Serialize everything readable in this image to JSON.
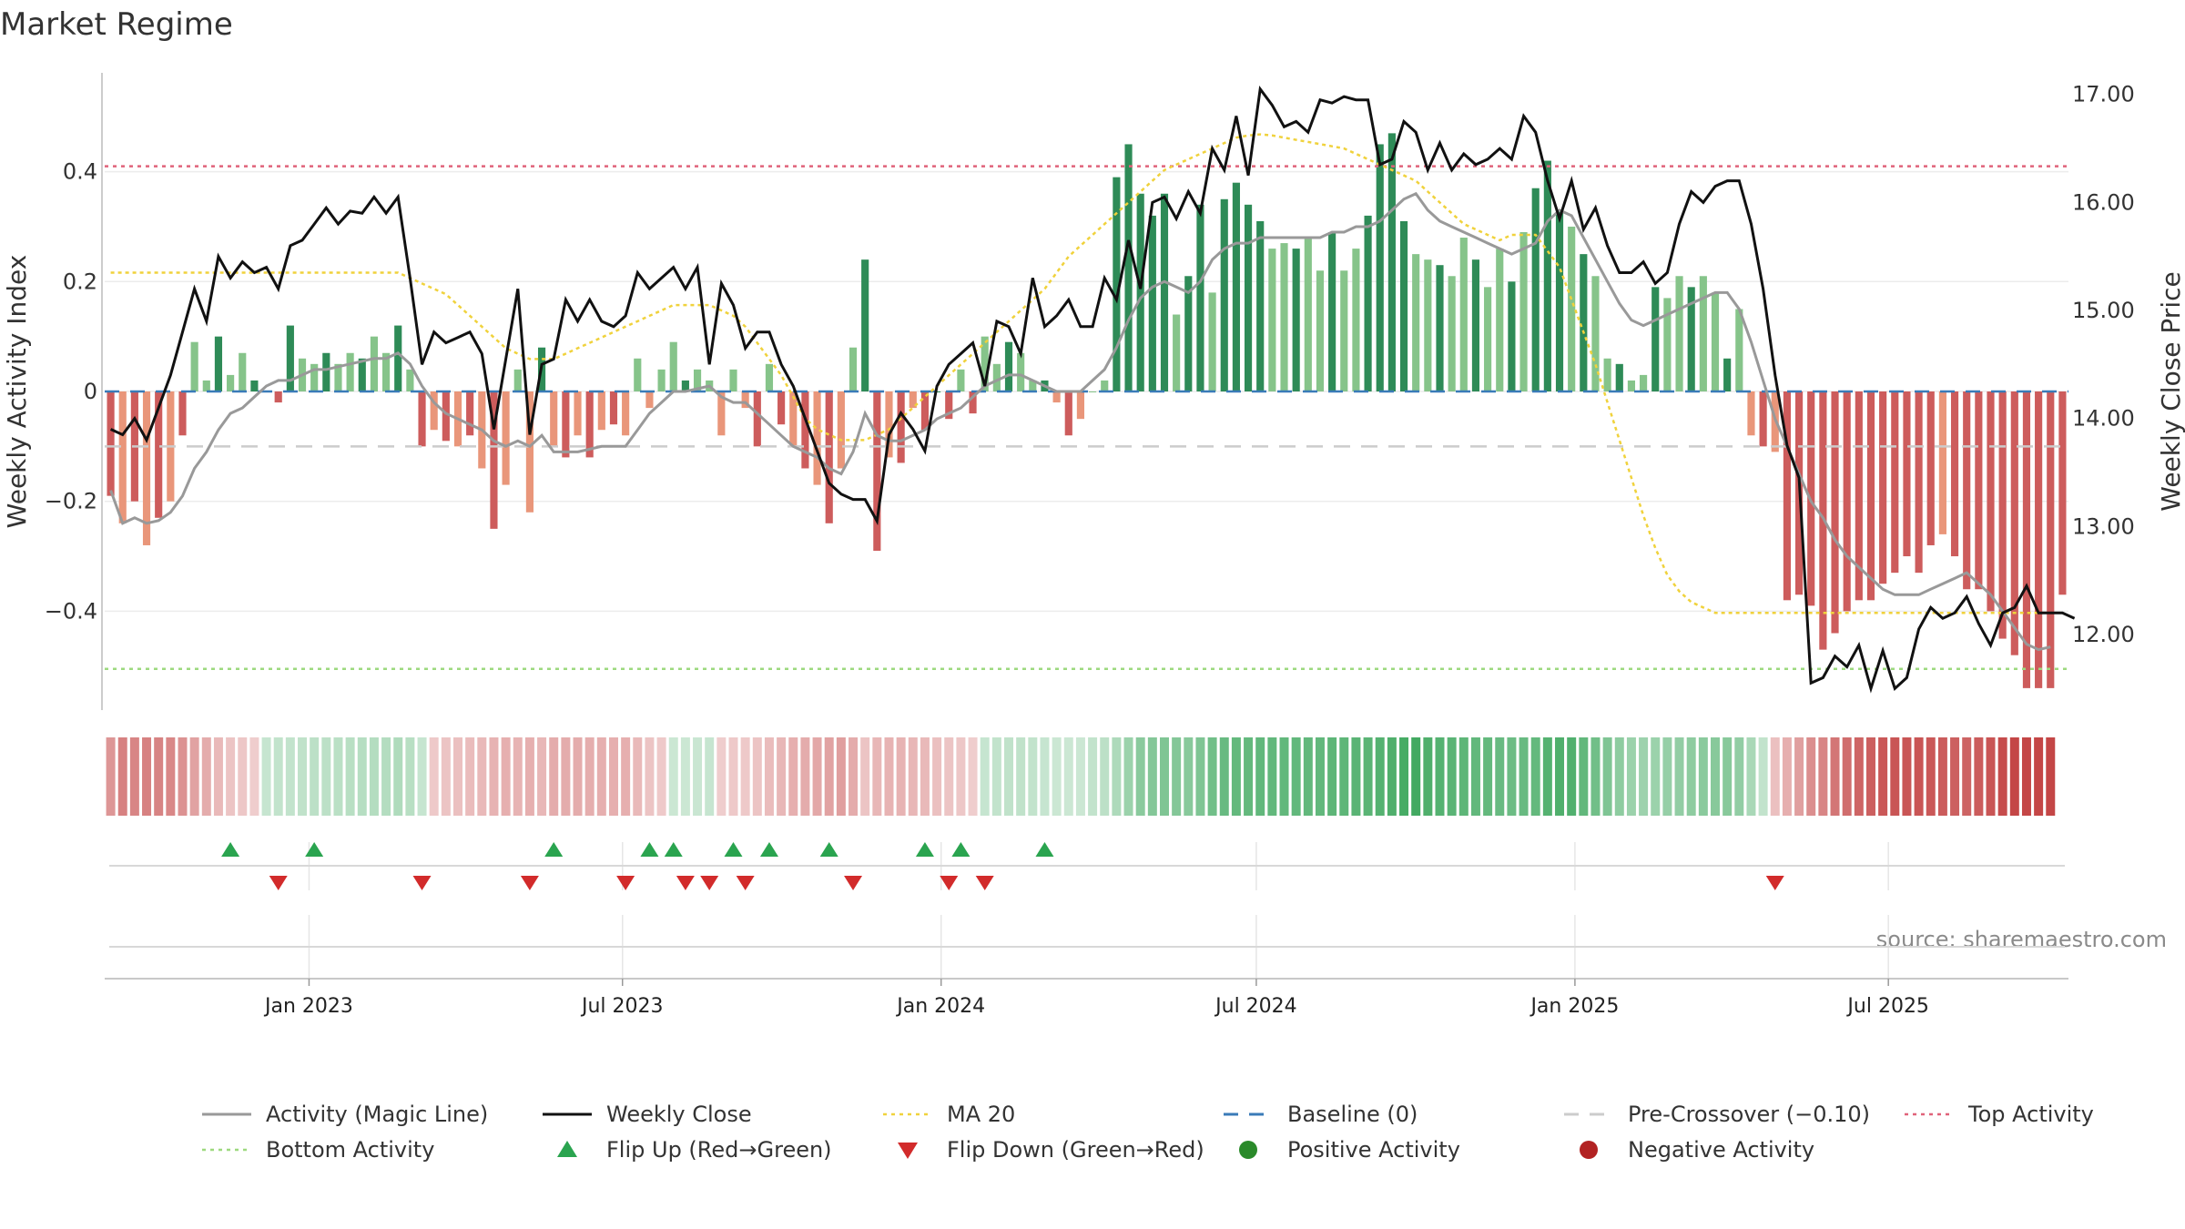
{
  "chart_data": {
    "type": "bar+line",
    "title": "Market Regime",
    "ylabel_left": "Weekly Activity Index",
    "ylabel_right": "Weekly Close Price",
    "source_note": "source: sharemaestro.com",
    "x_start": "2022-09-05",
    "x_end": "2025-10-13",
    "left_axis": {
      "ylim": [
        -0.58,
        0.58
      ],
      "ticks": [
        0.4,
        0.2,
        0,
        -0.2,
        -0.4
      ],
      "tick_labels": [
        "0.4",
        "0.2",
        "0",
        "−0.2",
        "−0.4"
      ]
    },
    "right_axis": {
      "ylim": [
        11.3,
        17.2
      ],
      "ticks": [
        17,
        16,
        15,
        14,
        13,
        12
      ],
      "tick_labels": [
        "17.00",
        "16.00",
        "15.00",
        "14.00",
        "13.00",
        "12.00"
      ]
    },
    "x_ticks": [
      {
        "date": "2023-01-01",
        "label": "Jan 2023"
      },
      {
        "date": "2023-07-01",
        "label": "Jul 2023"
      },
      {
        "date": "2024-01-01",
        "label": "Jan 2024"
      },
      {
        "date": "2024-07-01",
        "label": "Jul 2024"
      },
      {
        "date": "2025-01-01",
        "label": "Jan 2025"
      },
      {
        "date": "2025-07-01",
        "label": "Jul 2025"
      }
    ],
    "reference_lines": {
      "top_activity": 0.41,
      "bottom_activity": -0.505,
      "pre_crossover": -0.1,
      "baseline": 0
    },
    "activity": [
      -0.19,
      -0.24,
      -0.2,
      -0.28,
      -0.23,
      -0.2,
      -0.08,
      0.09,
      0.02,
      0.1,
      0.03,
      0.07,
      0.02,
      0,
      -0.02,
      0.12,
      0.06,
      0.05,
      0.07,
      0.05,
      0.07,
      0.06,
      0.1,
      0.07,
      0.12,
      0.04,
      -0.1,
      -0.07,
      -0.09,
      -0.1,
      -0.08,
      -0.14,
      -0.25,
      -0.17,
      0.04,
      -0.22,
      0.08,
      -0.1,
      -0.12,
      -0.08,
      -0.12,
      -0.07,
      -0.06,
      -0.08,
      0.06,
      -0.03,
      0.04,
      0.09,
      0.02,
      0.04,
      0.02,
      -0.08,
      0.04,
      -0.03,
      -0.1,
      0.05,
      -0.06,
      -0.1,
      -0.14,
      -0.17,
      -0.24,
      -0.14,
      0.08,
      0.24,
      -0.29,
      -0.12,
      -0.13,
      -0.03,
      -0.07,
      0,
      -0.05,
      0.04,
      -0.04,
      0.1,
      0.05,
      0.09,
      0.07,
      0.02,
      0.02,
      -0.02,
      -0.08,
      -0.05,
      0,
      0.02,
      0.39,
      0.45,
      0.36,
      0.32,
      0.36,
      0.14,
      0.21,
      0.34,
      0.18,
      0.35,
      0.38,
      0.34,
      0.31,
      0.26,
      0.27,
      0.26,
      0.28,
      0.22,
      0.29,
      0.22,
      0.26,
      0.32,
      0.45,
      0.47,
      0.31,
      0.25,
      0.24,
      0.23,
      0.21,
      0.28,
      0.24,
      0.19,
      0.26,
      0.2,
      0.29,
      0.37,
      0.42,
      0.33,
      0.3,
      0.25,
      0.21,
      0.06,
      0.05,
      0.02,
      0.03,
      0.19,
      0.17,
      0.21,
      0.19,
      0.21,
      0.18,
      0.06,
      0.15,
      -0.08,
      -0.1,
      -0.11,
      -0.38,
      -0.37,
      -0.39,
      -0.47,
      -0.44,
      -0.4,
      -0.38,
      -0.38,
      -0.35,
      -0.33,
      -0.3,
      -0.33,
      -0.28,
      -0.26,
      -0.3,
      -0.36,
      -0.36,
      -0.4,
      -0.45,
      -0.48,
      -0.54,
      -0.54,
      -0.54,
      -0.37
    ],
    "magic_line": [
      -0.18,
      -0.24,
      -0.23,
      -0.24,
      -0.235,
      -0.22,
      -0.19,
      -0.14,
      -0.11,
      -0.07,
      -0.04,
      -0.03,
      -0.01,
      0.01,
      0.02,
      0.02,
      0.03,
      0.04,
      0.04,
      0.045,
      0.05,
      0.055,
      0.06,
      0.06,
      0.07,
      0.05,
      0.01,
      -0.02,
      -0.04,
      -0.05,
      -0.06,
      -0.07,
      -0.09,
      -0.1,
      -0.09,
      -0.1,
      -0.08,
      -0.11,
      -0.11,
      -0.11,
      -0.105,
      -0.1,
      -0.1,
      -0.1,
      -0.07,
      -0.04,
      -0.02,
      0,
      0,
      0.005,
      0.01,
      -0.01,
      -0.02,
      -0.02,
      -0.04,
      -0.06,
      -0.08,
      -0.1,
      -0.11,
      -0.12,
      -0.14,
      -0.15,
      -0.11,
      -0.04,
      -0.08,
      -0.09,
      -0.09,
      -0.08,
      -0.07,
      -0.05,
      -0.04,
      -0.03,
      -0.01,
      0.01,
      0.02,
      0.03,
      0.03,
      0.02,
      0.01,
      0,
      0,
      0,
      0.02,
      0.04,
      0.08,
      0.13,
      0.17,
      0.19,
      0.2,
      0.19,
      0.18,
      0.2,
      0.24,
      0.26,
      0.27,
      0.27,
      0.28,
      0.28,
      0.28,
      0.28,
      0.28,
      0.28,
      0.29,
      0.29,
      0.3,
      0.3,
      0.31,
      0.33,
      0.35,
      0.36,
      0.33,
      0.31,
      0.3,
      0.29,
      0.28,
      0.27,
      0.26,
      0.25,
      0.26,
      0.27,
      0.31,
      0.33,
      0.32,
      0.28,
      0.24,
      0.2,
      0.16,
      0.13,
      0.12,
      0.13,
      0.14,
      0.15,
      0.16,
      0.17,
      0.18,
      0.18,
      0.15,
      0.09,
      0.02,
      -0.05,
      -0.1,
      -0.15,
      -0.2,
      -0.23,
      -0.27,
      -0.3,
      -0.32,
      -0.34,
      -0.36,
      -0.37,
      -0.37,
      -0.37,
      -0.36,
      -0.35,
      -0.34,
      -0.33,
      -0.35,
      -0.37,
      -0.4,
      -0.43,
      -0.46,
      -0.47,
      -0.465
    ],
    "weekly_close": [
      13.9,
      13.85,
      14,
      13.8,
      14.1,
      14.4,
      14.8,
      15.2,
      14.9,
      15.5,
      15.3,
      15.45,
      15.35,
      15.4,
      15.2,
      15.6,
      15.65,
      15.8,
      15.95,
      15.8,
      15.92,
      15.9,
      16.05,
      15.9,
      16.05,
      15.3,
      14.5,
      14.8,
      14.7,
      14.75,
      14.8,
      14.6,
      13.9,
      14.55,
      15.2,
      13.85,
      14.5,
      14.55,
      15.1,
      14.9,
      15.1,
      14.9,
      14.85,
      14.95,
      15.35,
      15.2,
      15.3,
      15.4,
      15.2,
      15.4,
      14.5,
      15.25,
      15.05,
      14.65,
      14.8,
      14.8,
      14.5,
      14.3,
      14,
      13.7,
      13.4,
      13.3,
      13.25,
      13.25,
      13.05,
      13.85,
      14.05,
      13.9,
      13.7,
      14.3,
      14.5,
      14.6,
      14.7,
      14.3,
      14.9,
      14.85,
      14.6,
      15.3,
      14.85,
      14.95,
      15.1,
      14.85,
      14.85,
      15.3,
      15.1,
      15.65,
      15.2,
      16,
      16.05,
      15.85,
      16.1,
      15.9,
      16.5,
      16.3,
      16.8,
      16.25,
      17.05,
      16.9,
      16.7,
      16.75,
      16.65,
      16.95,
      16.92,
      16.98,
      16.95,
      16.95,
      16.35,
      16.4,
      16.75,
      16.65,
      16.3,
      16.55,
      16.3,
      16.45,
      16.35,
      16.4,
      16.5,
      16.4,
      16.8,
      16.65,
      16.2,
      15.85,
      16.2,
      15.75,
      15.95,
      15.6,
      15.35,
      15.35,
      15.45,
      15.25,
      15.35,
      15.8,
      16.1,
      16,
      16.15,
      16.2,
      16.2,
      15.8,
      15.2,
      14.4,
      13.75,
      13.45,
      11.55,
      11.6,
      11.8,
      11.7,
      11.9,
      11.5,
      11.85,
      11.5,
      11.6,
      12.05,
      12.25,
      12.15,
      12.2,
      12.35,
      12.1,
      11.9,
      12.2,
      12.25,
      12.45,
      12.2,
      12.2,
      12.2,
      12.15
    ],
    "ma20": [
      15.35,
      15.35,
      15.35,
      15.35,
      15.35,
      15.35,
      15.35,
      15.35,
      15.35,
      15.35,
      15.35,
      15.35,
      15.35,
      15.35,
      15.35,
      15.35,
      15.35,
      15.35,
      15.35,
      15.35,
      15.35,
      15.35,
      15.35,
      15.35,
      15.35,
      15.3,
      15.25,
      15.2,
      15.15,
      15.05,
      14.95,
      14.85,
      14.75,
      14.65,
      14.6,
      14.55,
      14.55,
      14.55,
      14.6,
      14.65,
      14.7,
      14.75,
      14.8,
      14.85,
      14.9,
      14.95,
      15,
      15.05,
      15.05,
      15.05,
      15.05,
      15,
      14.95,
      14.85,
      14.7,
      14.55,
      14.4,
      14.2,
      14,
      13.9,
      13.85,
      13.8,
      13.8,
      13.8,
      13.85,
      13.9,
      14,
      14.1,
      14.2,
      14.3,
      14.4,
      14.5,
      14.6,
      14.7,
      14.8,
      14.9,
      15,
      15.1,
      15.2,
      15.35,
      15.5,
      15.6,
      15.7,
      15.8,
      15.9,
      16,
      16.1,
      16.2,
      16.3,
      16.35,
      16.4,
      16.45,
      16.5,
      16.55,
      16.6,
      16.62,
      16.63,
      16.62,
      16.6,
      16.58,
      16.56,
      16.54,
      16.52,
      16.5,
      16.45,
      16.4,
      16.35,
      16.3,
      16.25,
      16.2,
      16.1,
      16,
      15.9,
      15.8,
      15.75,
      15.7,
      15.65,
      15.7,
      15.7,
      15.7,
      15.55,
      15.4,
      15.1,
      14.8,
      14.5,
      14.15,
      13.8,
      13.45,
      13.1,
      12.8,
      12.55,
      12.4,
      12.3,
      12.25,
      12.2,
      12.2,
      12.2,
      12.2,
      12.2,
      12.2,
      12.2,
      12.2,
      12.2,
      12.2,
      12.2,
      12.2,
      12.2,
      12.2,
      12.2,
      12.2,
      12.2,
      12.2,
      12.2,
      12.2,
      12.2,
      12.2,
      12.2,
      12.2,
      12.2,
      12.2,
      12.2,
      12.2,
      12.2
    ],
    "flip_up_weeks": [
      10,
      17,
      37,
      45,
      47,
      52,
      55,
      60,
      68,
      71,
      78
    ],
    "flip_down_weeks": [
      14,
      26,
      35,
      43,
      48,
      50,
      53,
      62,
      70,
      73,
      139
    ],
    "legend": [
      {
        "label": "Activity (Magic Line)",
        "marker": "solid-line",
        "color": "#999999"
      },
      {
        "label": "Weekly Close",
        "marker": "solid-line",
        "color": "#111111"
      },
      {
        "label": "MA 20",
        "marker": "dotted-line",
        "color": "#f0d23c"
      },
      {
        "label": "Baseline (0)",
        "marker": "dashed-line",
        "color": "#3a7bb8"
      },
      {
        "label": "Pre-Crossover (−0.10)",
        "marker": "dashed-line",
        "color": "#cccccc"
      },
      {
        "label": "Top Activity",
        "marker": "dotted-line",
        "color": "#e0637a"
      },
      {
        "label": "Bottom Activity",
        "marker": "dotted-line",
        "color": "#9dd97f"
      },
      {
        "label": "Flip Up (Red→Green)",
        "marker": "triangle-up",
        "color": "#2aa44f"
      },
      {
        "label": "Flip Down (Green→Red)",
        "marker": "triangle-down",
        "color": "#d22b2b"
      },
      {
        "label": "Positive Activity",
        "marker": "dot",
        "color": "#2a8a2a"
      },
      {
        "label": "Negative Activity",
        "marker": "dot",
        "color": "#b22222"
      }
    ],
    "colors": {
      "pos_strong": "#2e8b57",
      "pos_light": "#86c48a",
      "neg_strong": "#cd5c5c",
      "neg_light": "#e9967a",
      "close": "#111111",
      "magic": "#999999",
      "ma20": "#f0d23c",
      "top": "#e0637a",
      "bottom": "#9dd97f",
      "pre": "#cccccc",
      "baseline": "#3a7bb8",
      "flip_up": "#2aa44f",
      "flip_down": "#d22b2b"
    },
    "grid": true,
    "legend_position": "bottom"
  }
}
